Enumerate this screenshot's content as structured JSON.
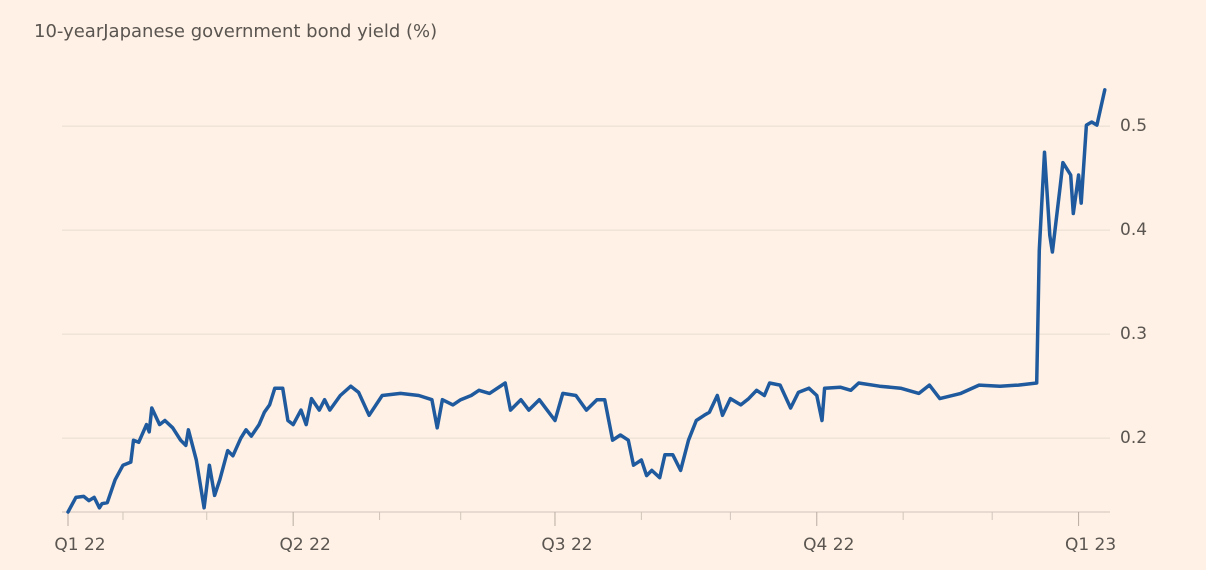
{
  "chart_data": {
    "type": "line",
    "title": "10-yearJapanese government bond yield (%)",
    "color": "#1f5a9e",
    "x": [
      0.14,
      0.17,
      0.2,
      0.22,
      0.24,
      0.26,
      0.27,
      0.29,
      0.32,
      0.35,
      0.38,
      0.39,
      0.41,
      0.44,
      0.45,
      0.46,
      0.49,
      0.51,
      0.54,
      0.57,
      0.59,
      0.6,
      0.63,
      0.66,
      0.68,
      0.7,
      0.72,
      0.75,
      0.77,
      0.8,
      0.82,
      0.84,
      0.87,
      0.89,
      0.91,
      0.93,
      0.96,
      0.98,
      1.0,
      1.03,
      1.05,
      1.07,
      1.1,
      1.12,
      1.14,
      1.18,
      1.22,
      1.25,
      1.29,
      1.34,
      1.41,
      1.48,
      1.53,
      1.55,
      1.57,
      1.61,
      1.64,
      1.68,
      1.71,
      1.75,
      1.81,
      1.83,
      1.87,
      1.9,
      1.94,
      1.97,
      2.0,
      2.03,
      2.08,
      2.12,
      2.16,
      2.19,
      2.22,
      2.25,
      2.28,
      2.3,
      2.33,
      2.35,
      2.37,
      2.4,
      2.42,
      2.45,
      2.48,
      2.51,
      2.54,
      2.57,
      2.59,
      2.62,
      2.64,
      2.67,
      2.71,
      2.74,
      2.77,
      2.8,
      2.82,
      2.86,
      2.9,
      2.93,
      2.97,
      3.0,
      3.02,
      3.03,
      3.09,
      3.13,
      3.16,
      3.24,
      3.32,
      3.39,
      3.43,
      3.47,
      3.55,
      3.62,
      3.7,
      3.77,
      3.84,
      3.85,
      3.87,
      3.89,
      3.9,
      3.93,
      3.94,
      3.97,
      3.98,
      4.0,
      4.01,
      4.03,
      4.05,
      4.07,
      4.1
    ],
    "values": [
      0.129,
      0.143,
      0.144,
      0.14,
      0.143,
      0.133,
      0.137,
      0.138,
      0.16,
      0.174,
      0.177,
      0.198,
      0.196,
      0.213,
      0.206,
      0.229,
      0.213,
      0.217,
      0.21,
      0.198,
      0.193,
      0.208,
      0.179,
      0.133,
      0.174,
      0.145,
      0.16,
      0.188,
      0.183,
      0.2,
      0.208,
      0.202,
      0.213,
      0.225,
      0.232,
      0.248,
      0.248,
      0.217,
      0.213,
      0.227,
      0.213,
      0.238,
      0.227,
      0.237,
      0.227,
      0.241,
      0.25,
      0.244,
      0.222,
      0.241,
      0.243,
      0.241,
      0.237,
      0.21,
      0.237,
      0.232,
      0.237,
      0.241,
      0.246,
      0.243,
      0.253,
      0.227,
      0.237,
      0.227,
      0.237,
      0.227,
      0.217,
      0.243,
      0.241,
      0.227,
      0.237,
      0.237,
      0.198,
      0.203,
      0.198,
      0.174,
      0.179,
      0.164,
      0.169,
      0.162,
      0.184,
      0.184,
      0.169,
      0.198,
      0.217,
      0.222,
      0.225,
      0.241,
      0.222,
      0.238,
      0.232,
      0.238,
      0.246,
      0.241,
      0.253,
      0.251,
      0.229,
      0.244,
      0.248,
      0.241,
      0.217,
      0.248,
      0.249,
      0.246,
      0.253,
      0.25,
      0.248,
      0.243,
      0.251,
      0.238,
      0.243,
      0.251,
      0.25,
      0.251,
      0.253,
      0.381,
      0.475,
      0.395,
      0.379,
      0.443,
      0.465,
      0.453,
      0.416,
      0.453,
      0.426,
      0.501,
      0.504,
      0.501,
      0.535
    ],
    "xlim": [
      0.14,
      4.12
    ],
    "xticks": [
      {
        "value": 0.14,
        "label": "Q1 22"
      },
      {
        "value": 1,
        "label": "Q2 22"
      },
      {
        "value": 2,
        "label": "Q3 22"
      },
      {
        "value": 3,
        "label": "Q4 22"
      },
      {
        "value": 4,
        "label": "Q1 23"
      }
    ],
    "xminorticks": [
      0.35,
      0.67,
      1.33,
      1.64,
      2.33,
      2.67,
      3.33,
      3.67
    ],
    "ylim": [
      0.129,
      0.554
    ],
    "yticks": [
      0.2,
      0.3,
      0.4,
      0.5
    ],
    "grid": true
  }
}
